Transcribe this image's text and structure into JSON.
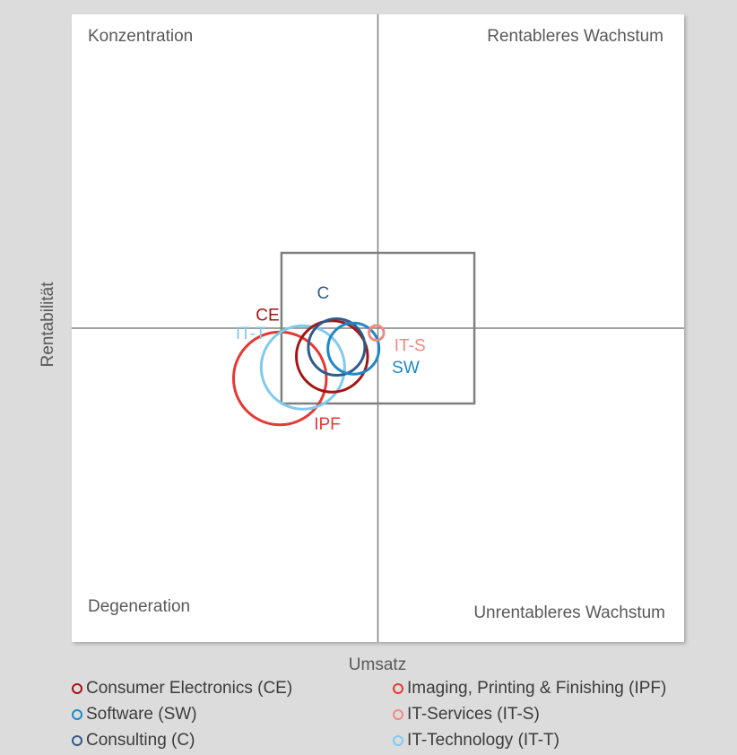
{
  "chart_data": {
    "type": "scatter",
    "subtype": "bubble-quadrant",
    "xlabel": "Umsatz",
    "ylabel": "Rentabilität",
    "quadrants": {
      "top_left": "Konzentration",
      "top_right": "Rentableres Wachstum",
      "bottom_left": "Degeneration",
      "bottom_right": "Unrentableres Wachstum"
    },
    "grid": false,
    "legend_position": "bottom",
    "series": [
      {
        "name": "Consumer Electronics (CE)",
        "label": "CE",
        "x": -0.3,
        "y": -0.18,
        "size": 0.53,
        "color": "#a31515"
      },
      {
        "name": "Imaging, Printing & Finishing (IPF)",
        "label": "IPF",
        "x": -0.64,
        "y": -0.32,
        "size": 0.69,
        "color": "#e53935"
      },
      {
        "name": "Software (SW)",
        "label": "SW",
        "x": -0.16,
        "y": -0.13,
        "size": 0.38,
        "color": "#1e88c9"
      },
      {
        "name": "IT-Services (IT-S)",
        "label": "IT-S",
        "x": -0.01,
        "y": -0.03,
        "size": 0.11,
        "color": "#ef8a80"
      },
      {
        "name": "Consulting (C)",
        "label": "C",
        "x": -0.27,
        "y": -0.12,
        "size": 0.42,
        "color": "#2f5b8c"
      },
      {
        "name": "IT-Technology (IT-T)",
        "label": "IT-T",
        "x": -0.49,
        "y": -0.25,
        "size": 0.62,
        "color": "#7fcaef"
      }
    ],
    "xlim": [
      -2,
      2
    ],
    "ylim": [
      -2,
      2
    ],
    "highlight_box": {
      "x": [
        -0.63,
        0.63
      ],
      "y": [
        -0.48,
        0.48
      ]
    }
  }
}
